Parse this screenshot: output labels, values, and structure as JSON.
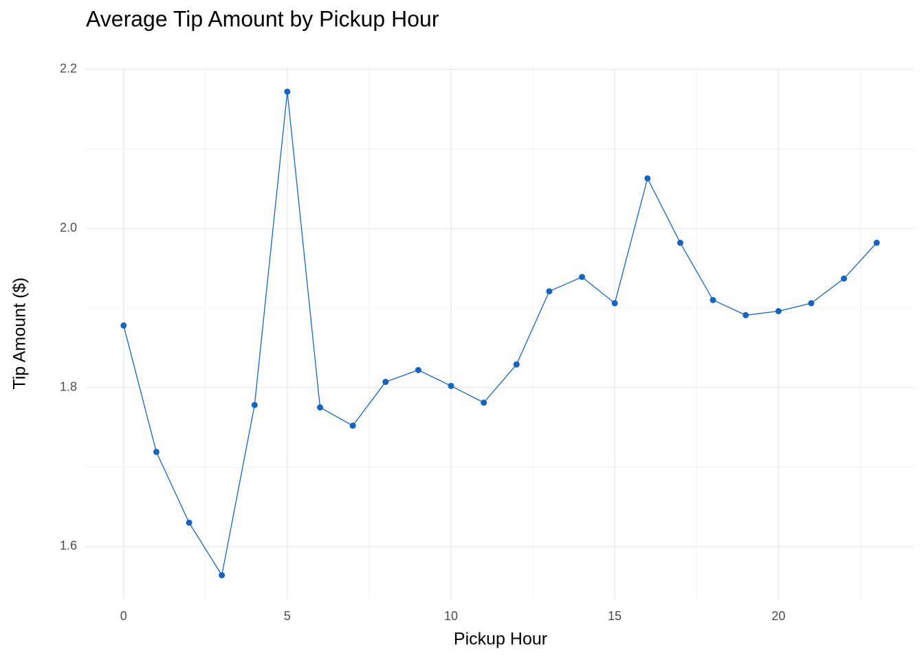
{
  "chart_data": {
    "type": "line",
    "title": "Average Tip Amount by Pickup Hour",
    "x_label": "Pickup Hour",
    "y_label": "Tip Amount ($)",
    "x": [
      0,
      1,
      2,
      3,
      4,
      5,
      6,
      7,
      8,
      9,
      10,
      11,
      12,
      13,
      14,
      15,
      16,
      17,
      18,
      19,
      20,
      21,
      22,
      23
    ],
    "series": [
      {
        "name": "Tip Amount",
        "color": "#1565c0",
        "values": [
          1.878,
          1.719,
          1.63,
          1.564,
          1.778,
          2.172,
          1.775,
          1.752,
          1.807,
          1.822,
          1.802,
          1.781,
          1.829,
          1.921,
          1.939,
          1.906,
          2.063,
          1.982,
          1.91,
          1.891,
          1.896,
          1.906,
          1.937,
          1.982
        ]
      }
    ],
    "xlim": [
      -1.15,
      24.15
    ],
    "xticks": [
      0,
      5,
      10,
      15,
      20
    ],
    "ylim": [
      1.5336,
      2.2024
    ],
    "yticks": [
      1.6,
      1.8,
      {
        "value": 2.0,
        "label": "2.0"
      },
      2.2
    ],
    "grid": true
  }
}
